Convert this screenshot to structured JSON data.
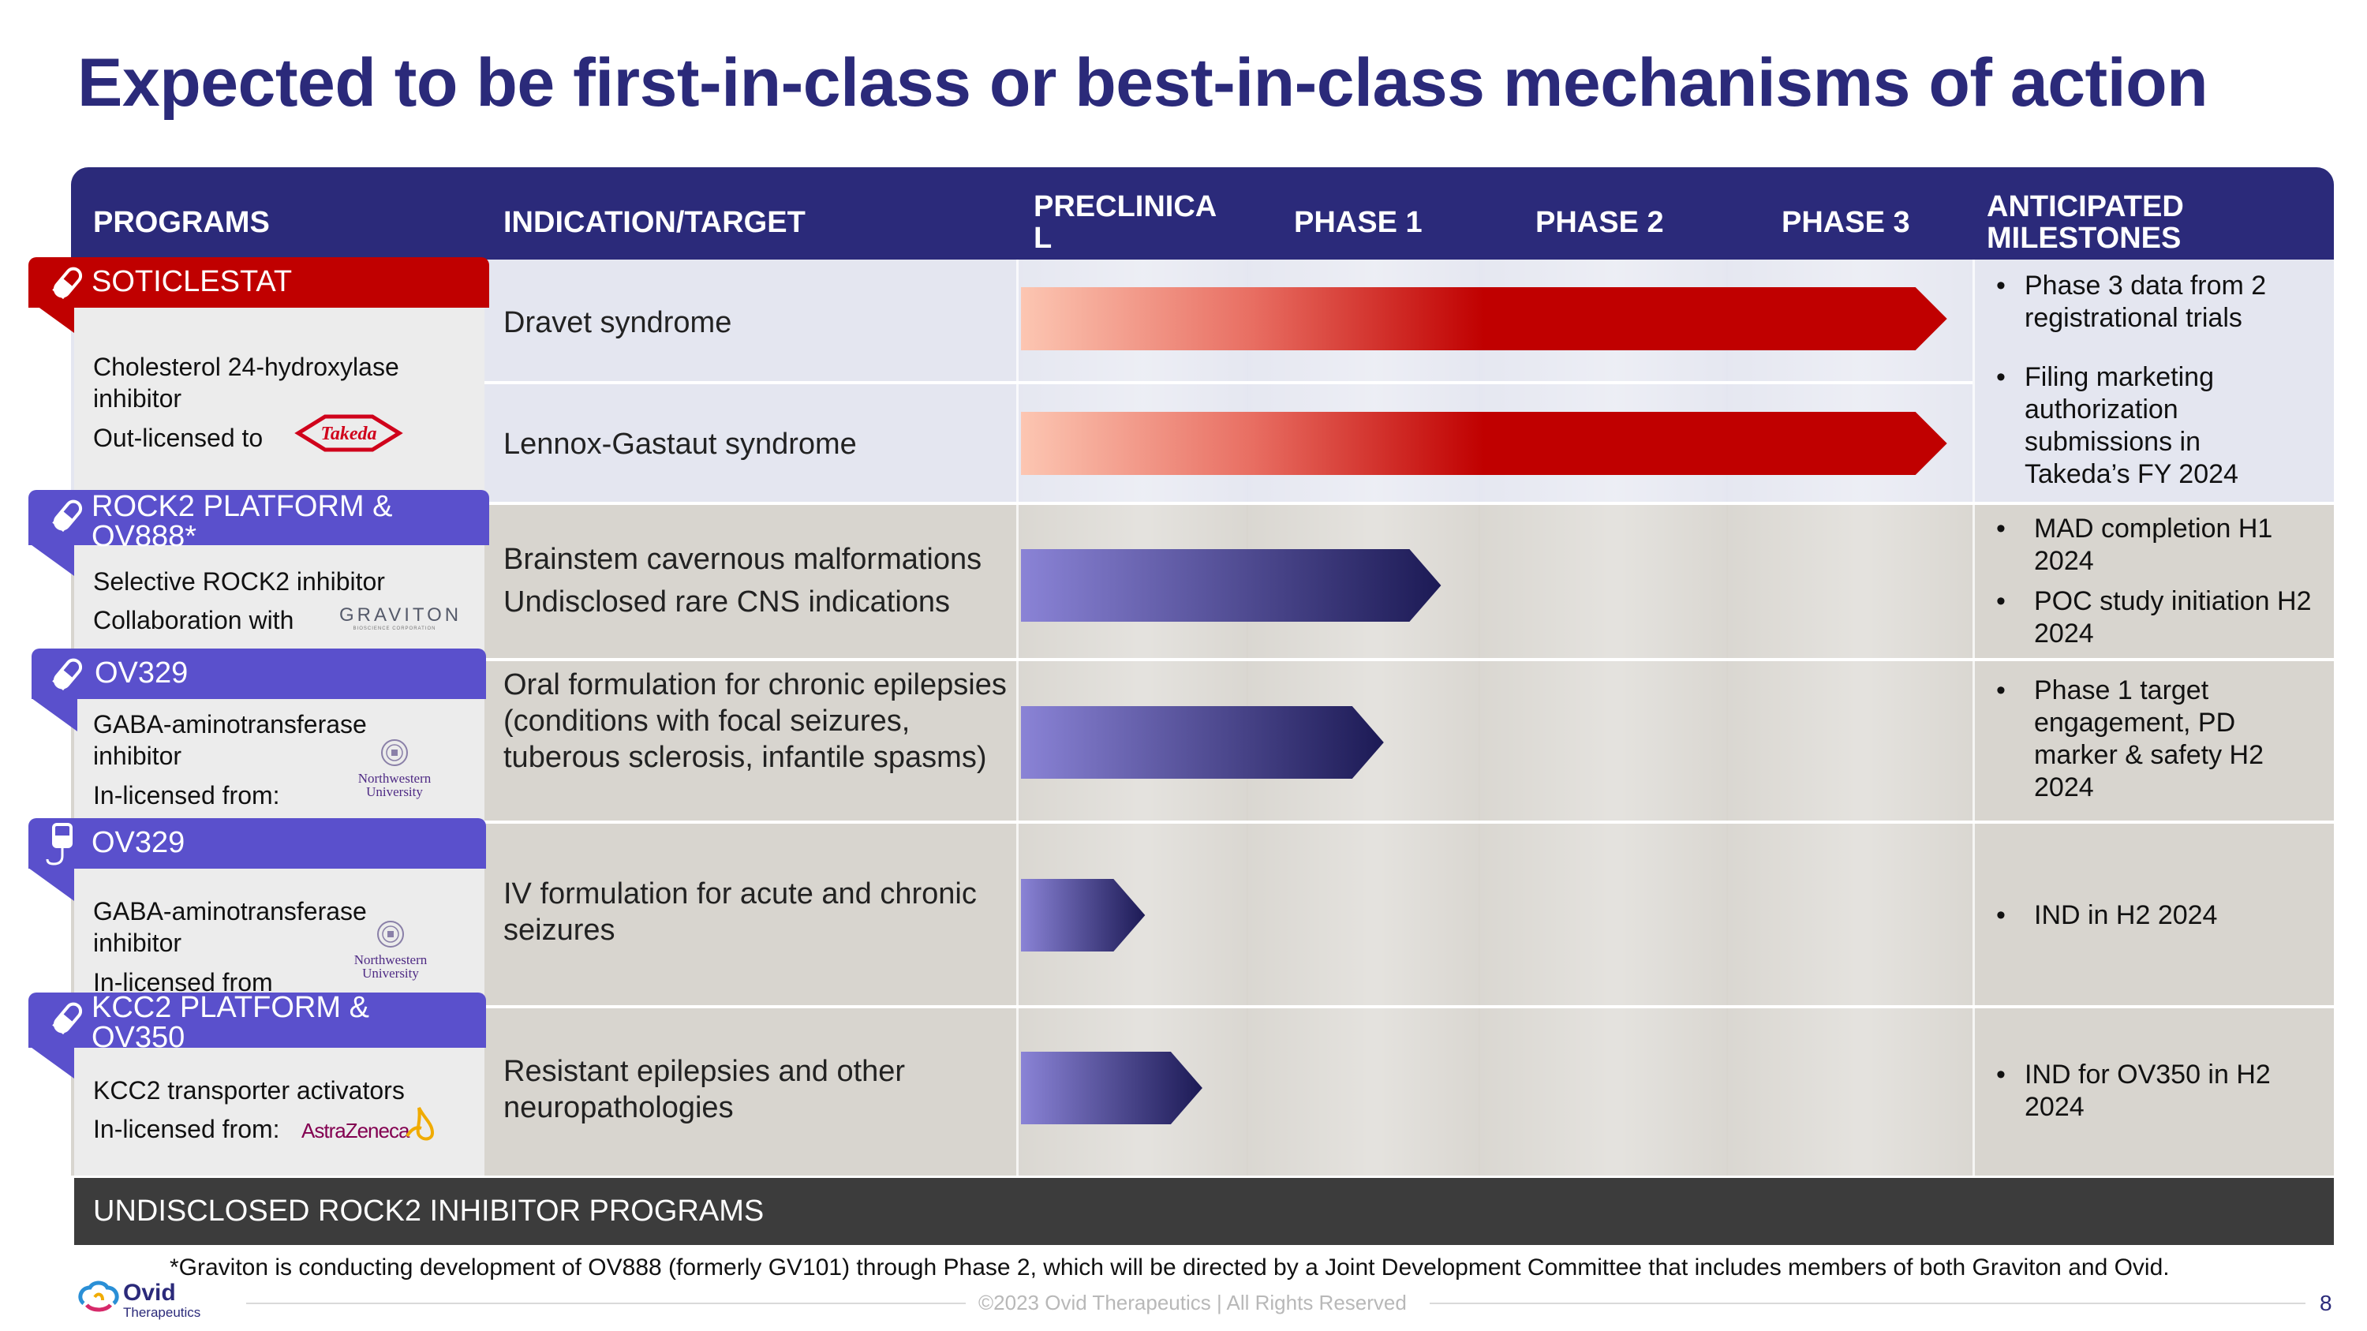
{
  "title": "Expected to be first-in-class or best-in-class mechanisms of action",
  "header": {
    "programs": "PROGRAMS",
    "indication": "INDICATION/TARGET",
    "preclinical": "PRECLINICA L",
    "phase1": "PHASE 1",
    "phase2": "PHASE 2",
    "phase3": "PHASE 3",
    "milestones": "ANTICIPATED MILESTONES"
  },
  "programs": [
    {
      "name": "SOTICLESTAT",
      "icon": "pill-icon",
      "mechanism": "Cholesterol 24-hydroxylase inhibitor",
      "partner_text": "Out-licensed to",
      "partner_logo": "Takeda",
      "indications": [
        "Dravet syndrome",
        "Lennox-Gastaut syndrome"
      ],
      "progress": [
        0.97,
        0.97
      ],
      "milestones": [
        "Phase 3 data from 2 registrational trials",
        "Filing marketing authorization submissions in Takeda’s FY 2024"
      ]
    },
    {
      "name": "ROCK2 PLATFORM & OV888*",
      "icon": "pill-icon",
      "mechanism": "Selective ROCK2 inhibitor",
      "partner_text": "Collaboration with",
      "partner_logo": "GRAVITON",
      "partner_logo_sub": "BIOSCIENCE CORPORATION",
      "indications": [
        "Brainstem cavernous malformations",
        "Undisclosed rare CNS indications"
      ],
      "progress": 0.44,
      "milestones": [
        "MAD completion H1 2024",
        "POC study initiation H2 2024"
      ]
    },
    {
      "name": "OV329",
      "icon": "pill-icon",
      "mechanism": "GABA-aminotransferase inhibitor",
      "partner_text": "In-licensed from:",
      "partner_logo": "Northwestern University",
      "indications": [
        "Oral formulation for chronic epilepsies (conditions with focal seizures, tuberous sclerosis, infantile spasms)"
      ],
      "progress": 0.38,
      "milestones": [
        "Phase 1 target engagement, PD marker & safety H2 2024"
      ]
    },
    {
      "name": "OV329",
      "icon": "iv-bag-icon",
      "mechanism": "GABA-aminotransferase inhibitor",
      "partner_text": "In-licensed from",
      "partner_logo": "Northwestern University",
      "indications": [
        "IV formulation for acute and chronic seizures"
      ],
      "progress": 0.13,
      "milestones": [
        "IND in H2 2024"
      ]
    },
    {
      "name": "KCC2 PLATFORM & OV350",
      "icon": "pill-icon",
      "mechanism": "KCC2 transporter activators",
      "partner_text": "In-licensed from:",
      "partner_logo": "AstraZeneca",
      "indications": [
        "Resistant epilepsies and other neuropathologies"
      ],
      "progress": 0.19,
      "milestones": [
        "IND for OV350 in H2 2024"
      ]
    }
  ],
  "undisclosed": "UNDISCLOSED ROCK2 INHIBITOR PROGRAMS",
  "footnote": "*Graviton is conducting development of OV888 (formerly GV101) through Phase 2, which will be directed by a Joint Development Committee that includes members of both Graviton and Ovid.",
  "footer": {
    "logo_name": "Ovid",
    "logo_sub": "Therapeutics",
    "copyright": "©2023 Ovid Therapeutics | All Rights Reserved",
    "page": "8"
  },
  "colors": {
    "navy": "#2b2a7a",
    "red": "#c00000",
    "purple": "#5a50cc",
    "gray_band": "#d8d5cf",
    "lavender_band": "#e4e6f0"
  }
}
